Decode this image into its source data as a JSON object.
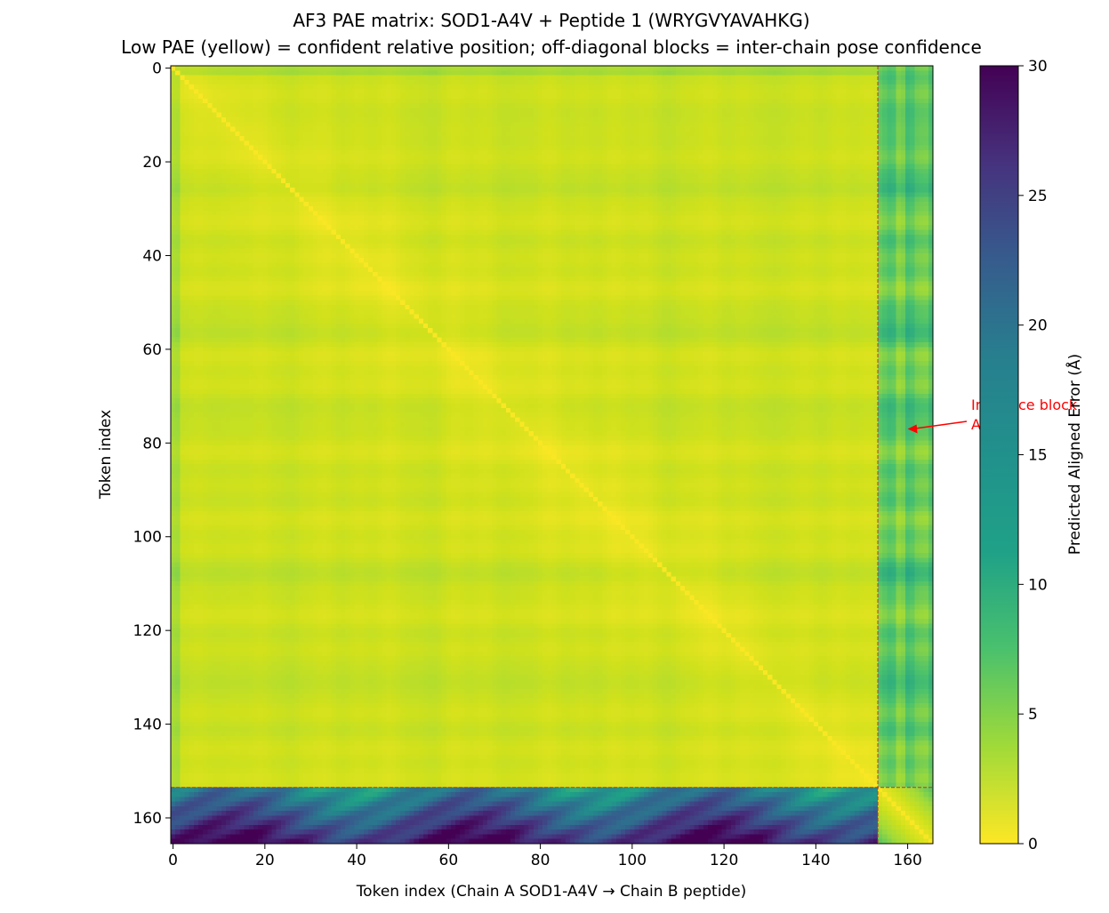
{
  "chart_data": {
    "type": "heatmap",
    "title": "AF3 PAE matrix: SOD1-A4V + Peptide 1 (WRYGVYAVAHKG)",
    "subtitle": "Low PAE (yellow) = confident relative position; off-diagonal blocks = inter-chain pose confidence",
    "xlabel": "Token index (Chain A SOD1-A4V → Chain B peptide)",
    "ylabel": "Token index",
    "colorbar_label": "Predicted Aligned Error (Å)",
    "colormap": "viridis_r",
    "n_tokens": 166,
    "chain_a_length": 154,
    "chain_b_length": 12,
    "chain_boundary": 153.5,
    "xlim": [
      -0.5,
      165.5
    ],
    "ylim": [
      165.5,
      -0.5
    ],
    "x_ticks": [
      0,
      20,
      40,
      60,
      80,
      100,
      120,
      140,
      160
    ],
    "y_ticks": [
      0,
      20,
      40,
      60,
      80,
      100,
      120,
      140,
      160
    ],
    "colorbar_range": [
      0,
      30
    ],
    "colorbar_ticks": [
      0,
      5,
      10,
      15,
      20,
      25,
      30
    ],
    "boundary_line_color": "#d62728",
    "pae_summary": {
      "intra_chain_A": "mostly 1–6 Å",
      "chain_A_rows_to_chain_B": "about 8–14 Å",
      "chain_B_rows_to_chain_A": "about 15–29 Å",
      "intra_chain_B": "about 1–8 Å",
      "diagonal": "about 0.5 Å"
    },
    "annotation": {
      "text_line1": "Interface block",
      "text_line2": "A",
      "x": 160,
      "y": 77,
      "color": "#ff0000"
    }
  }
}
